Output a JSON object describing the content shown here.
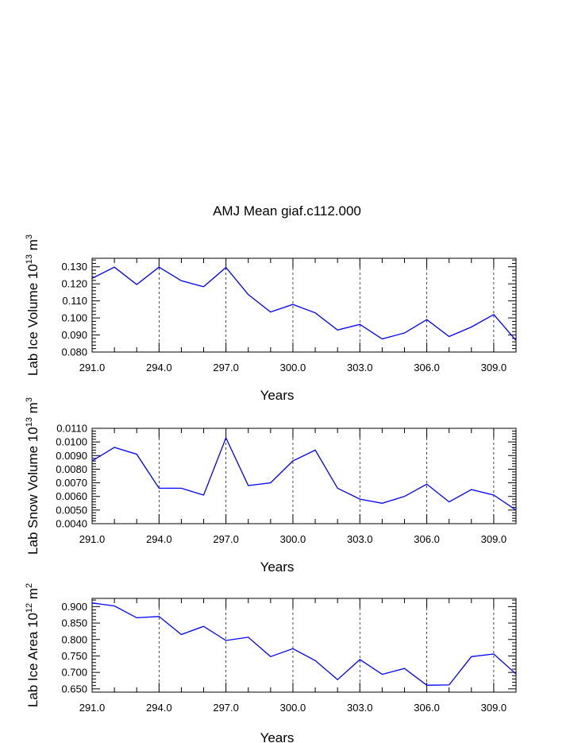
{
  "title": "AMJ Mean giaf.c112.000",
  "colors": {
    "line": "#0000ff",
    "axis": "#000000",
    "grid": "#000000"
  },
  "chart_data": [
    {
      "type": "line",
      "ylabel_main": "Lab Ice Volume 10",
      "ylabel_exp": "13",
      "ylabel_unit": " m",
      "ylabel_unit_exp": "3",
      "xlabel": "Years",
      "xlim": [
        291,
        310
      ],
      "ylim": [
        0.08,
        0.135
      ],
      "xticks": [
        "291.0",
        "294.0",
        "297.0",
        "300.0",
        "303.0",
        "306.0",
        "309.0"
      ],
      "yticks": [
        "0.080",
        "0.090",
        "0.100",
        "0.110",
        "0.120",
        "0.130"
      ],
      "x": [
        291,
        292,
        293,
        294,
        295,
        296,
        297,
        298,
        299,
        300,
        301,
        302,
        303,
        304,
        305,
        306,
        307,
        308,
        309,
        310
      ],
      "values": [
        0.1232,
        0.1298,
        0.1196,
        0.1298,
        0.1218,
        0.1183,
        0.1296,
        0.1137,
        0.1035,
        0.1079,
        0.103,
        0.0929,
        0.0962,
        0.0877,
        0.0912,
        0.099,
        0.0891,
        0.0947,
        0.102,
        0.0868
      ]
    },
    {
      "type": "line",
      "ylabel_main": "Lab Snow Volume 10",
      "ylabel_exp": "13",
      "ylabel_unit": " m",
      "ylabel_unit_exp": "3",
      "xlabel": "Years",
      "xlim": [
        291,
        310
      ],
      "ylim": [
        0.004,
        0.011
      ],
      "xticks": [
        "291.0",
        "294.0",
        "297.0",
        "300.0",
        "303.0",
        "306.0",
        "309.0"
      ],
      "yticks": [
        "0.0040",
        "0.0050",
        "0.0060",
        "0.0070",
        "0.0080",
        "0.0090",
        "0.0100",
        "0.0110"
      ],
      "x": [
        291,
        292,
        293,
        294,
        295,
        296,
        297,
        298,
        299,
        300,
        301,
        302,
        303,
        304,
        305,
        306,
        307,
        308,
        309,
        310
      ],
      "values": [
        0.0086,
        0.0096,
        0.0091,
        0.0066,
        0.0066,
        0.0061,
        0.0103,
        0.0068,
        0.007,
        0.0086,
        0.0094,
        0.0066,
        0.0058,
        0.0055,
        0.006,
        0.0069,
        0.0056,
        0.0065,
        0.0061,
        0.005
      ]
    },
    {
      "type": "line",
      "ylabel_main": "Lab Ice Area 10",
      "ylabel_exp": "12",
      "ylabel_unit": " m",
      "ylabel_unit_exp": "2",
      "xlabel": "Years",
      "xlim": [
        291,
        310
      ],
      "ylim": [
        0.64,
        0.925
      ],
      "xticks": [
        "291.0",
        "294.0",
        "297.0",
        "300.0",
        "303.0",
        "306.0",
        "309.0"
      ],
      "yticks": [
        "0.650",
        "0.700",
        "0.750",
        "0.800",
        "0.850",
        "0.900"
      ],
      "x": [
        291,
        292,
        293,
        294,
        295,
        296,
        297,
        298,
        299,
        300,
        301,
        302,
        303,
        304,
        305,
        306,
        307,
        308,
        309,
        310
      ],
      "values": [
        0.911,
        0.902,
        0.866,
        0.87,
        0.815,
        0.84,
        0.797,
        0.807,
        0.748,
        0.772,
        0.736,
        0.678,
        0.739,
        0.694,
        0.712,
        0.661,
        0.662,
        0.748,
        0.756,
        0.695
      ]
    }
  ]
}
